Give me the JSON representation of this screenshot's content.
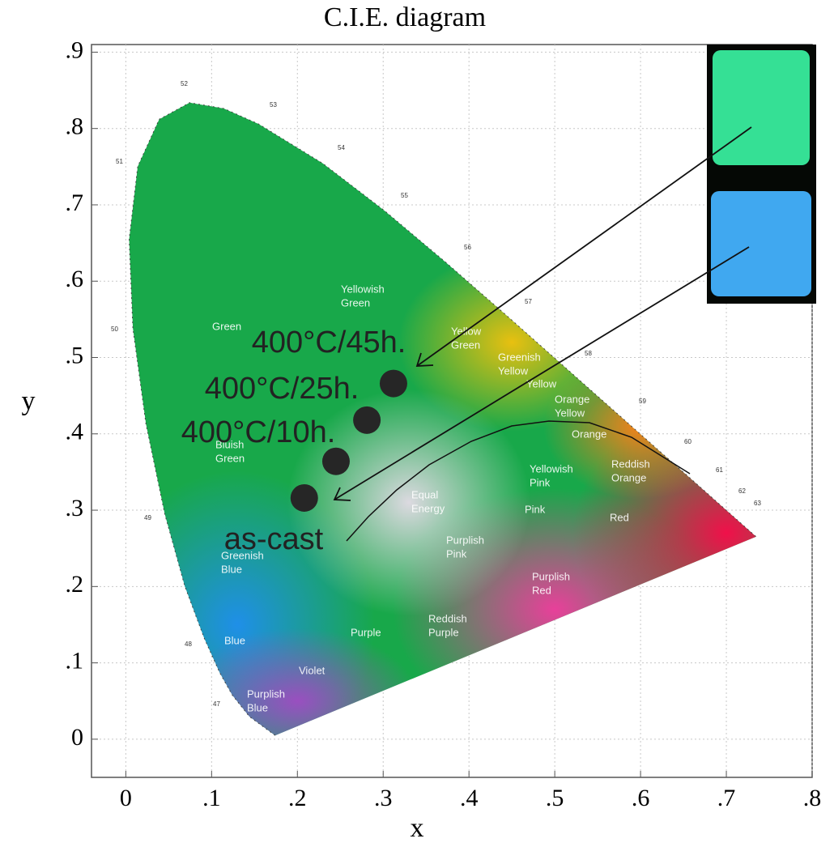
{
  "chart_data": {
    "type": "scatter",
    "title": "C.I.E. diagram",
    "x_label": "x",
    "y_label": "y",
    "x": [
      0.312,
      0.281,
      0.245,
      0.208
    ],
    "values": [
      0.466,
      0.418,
      0.364,
      0.316
    ],
    "point_labels": [
      "400°C/45h.",
      "400°C/25h.",
      "400°C/10h.",
      "as-cast"
    ],
    "color": "#262626",
    "xlim": [
      -0.04,
      0.8
    ],
    "ylim": [
      -0.05,
      0.91
    ],
    "xticks": [
      0,
      {
        "value": 0.1,
        "label": ".1"
      },
      {
        "value": 0.2,
        "label": ".2"
      },
      {
        "value": 0.3,
        "label": ".3"
      },
      {
        "value": 0.4,
        "label": ".4"
      },
      {
        "value": 0.5,
        "label": ".5"
      },
      {
        "value": 0.6,
        "label": ".6"
      },
      {
        "value": 0.7,
        "label": ".7"
      },
      {
        "value": 0.8,
        "label": ".8"
      }
    ],
    "yticks": [
      0,
      {
        "value": 0.1,
        "label": ".1"
      },
      {
        "value": 0.2,
        "label": ".2"
      },
      {
        "value": 0.3,
        "label": ".3"
      },
      {
        "value": 0.4,
        "label": ".4"
      },
      {
        "value": 0.5,
        "label": ".5"
      },
      {
        "value": 0.6,
        "label": ".6"
      },
      {
        "value": 0.7,
        "label": ".7"
      },
      {
        "value": 0.8,
        "label": ".8"
      },
      {
        "value": 0.9,
        "label": ".9"
      }
    ],
    "grid": true,
    "region_labels": [
      [
        "Yellowish",
        "Green"
      ],
      [
        "Green"
      ],
      [
        "Yellow",
        "Green"
      ],
      [
        "Greenish",
        "Yellow"
      ],
      [
        "Yellow"
      ],
      [
        "Orange",
        "Yellow"
      ],
      [
        "Orange"
      ],
      [
        "Reddish",
        "Orange"
      ],
      [
        "Yellowish",
        "Pink"
      ],
      [
        "Pink"
      ],
      [
        "Red"
      ],
      [
        "Equal",
        "Energy"
      ],
      [
        "Purplish",
        "Pink"
      ],
      [
        "Purplish",
        "Red"
      ],
      [
        "Reddish",
        "Purple"
      ],
      [
        "Purple"
      ],
      [
        "Violet"
      ],
      [
        "Purplish",
        "Blue"
      ],
      [
        "Blue"
      ],
      [
        "Greenish",
        "Blue"
      ],
      [
        "Bluish",
        "Green"
      ]
    ],
    "wavelength_labels": [
      "47",
      "48",
      "49",
      "50",
      "51",
      "52",
      "53",
      "54",
      "55",
      "56",
      "57",
      "58",
      "59",
      "60",
      "61",
      "62",
      "63"
    ]
  }
}
